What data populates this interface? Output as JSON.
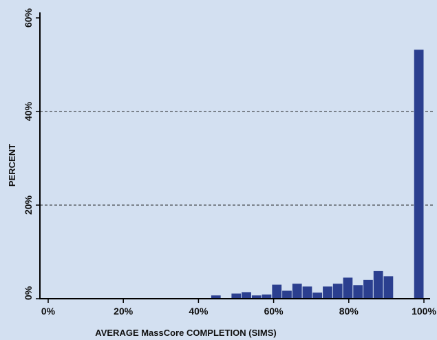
{
  "chart_data": {
    "type": "bar",
    "title": "",
    "xlabel": "AVERAGE MassCore COMPLETION (SIMS)",
    "ylabel": "PERCENT",
    "xlim": [
      0,
      100
    ],
    "ylim": [
      0,
      60
    ],
    "x_ticks": [
      "0%",
      "20%",
      "40%",
      "60%",
      "80%",
      "100%"
    ],
    "y_ticks": [
      "0%",
      "20%",
      "40%",
      "60%"
    ],
    "gridlines_y": [
      20,
      40
    ],
    "grid": "dashed horizontal lines at 20% and 40%",
    "bar_color": "#2b3f8f",
    "bin_width": 2.7,
    "bins": [
      43.3,
      46.0,
      48.7,
      51.4,
      54.1,
      56.8,
      59.5,
      62.2,
      64.9,
      67.6,
      70.3,
      73.0,
      75.7,
      78.4,
      81.1,
      83.8,
      86.5,
      89.2,
      91.9,
      94.6,
      97.3
    ],
    "values": [
      0.7,
      0.0,
      1.1,
      1.4,
      0.7,
      0.9,
      3.0,
      1.7,
      3.2,
      2.6,
      1.3,
      2.6,
      3.2,
      4.5,
      2.9,
      4.0,
      5.9,
      4.8,
      0.0,
      0.0,
      53.2
    ],
    "bins_note_removed": true
  },
  "colors": {
    "background": "#d3e0f1",
    "bar": "#2b3f8f",
    "axis": "#000000"
  }
}
